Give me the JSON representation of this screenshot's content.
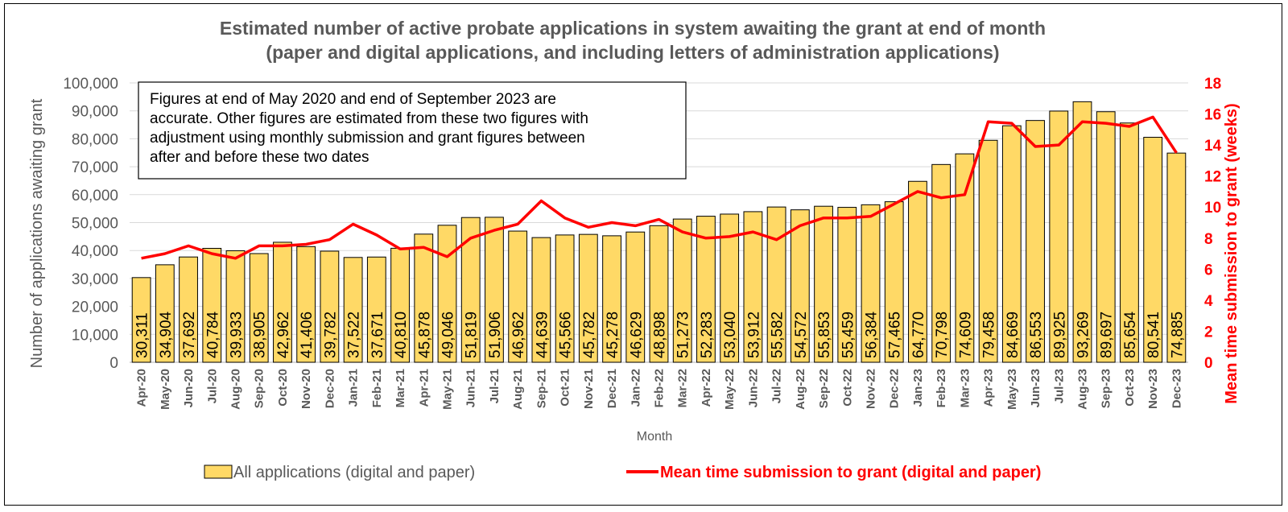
{
  "chart_data": {
    "type": "bar",
    "title": "Estimated number of active probate applications in system awaiting the grant at end of month",
    "subtitle": "(paper and digital applications, and including letters of administration applications)",
    "xlabel": "Month",
    "ylabel": "Number of applications awaiting grant",
    "y2label": "Mean time submission to grant (weeks)",
    "ylim": [
      0,
      100000
    ],
    "y2lim": [
      0,
      18
    ],
    "yticks": [
      "0",
      "10,000",
      "20,000",
      "30,000",
      "40,000",
      "50,000",
      "60,000",
      "70,000",
      "80,000",
      "90,000",
      "100,000"
    ],
    "y2ticks": [
      "0",
      "2",
      "4",
      "6",
      "8",
      "10",
      "12",
      "14",
      "16",
      "18"
    ],
    "grid": true,
    "legend_position": "bottom",
    "categories": [
      "Apr-20",
      "May-20",
      "Jun-20",
      "Jul-20",
      "Aug-20",
      "Sep-20",
      "Oct-20",
      "Nov-20",
      "Dec-20",
      "Jan-21",
      "Feb-21",
      "Mar-21",
      "Apr-21",
      "May-21",
      "Jun-21",
      "Jul-21",
      "Aug-21",
      "Sep-21",
      "Oct-21",
      "Nov-21",
      "Dec-21",
      "Jan-22",
      "Feb-22",
      "Mar-22",
      "Apr-22",
      "May-22",
      "Jun-22",
      "Jul-22",
      "Aug-22",
      "Sep-22",
      "Oct-22",
      "Nov-22",
      "Dec-22",
      "Jan-23",
      "Feb-23",
      "Mar-23",
      "Apr-23",
      "May-23",
      "Jun-23",
      "Jul-23",
      "Aug-23",
      "Sep-23",
      "Oct-23",
      "Nov-23",
      "Dec-23"
    ],
    "series": [
      {
        "name": "All applications (digital and paper)",
        "type": "bar",
        "axis": "left",
        "color": "#ffd966",
        "values": [
          30311,
          34904,
          37692,
          40784,
          39933,
          38905,
          42962,
          41406,
          39782,
          37522,
          37671,
          40810,
          45878,
          49046,
          51819,
          51906,
          46962,
          44639,
          45566,
          45782,
          45278,
          46629,
          48898,
          51273,
          52283,
          53040,
          53912,
          55582,
          54572,
          55853,
          55459,
          56384,
          57465,
          64770,
          70798,
          74609,
          79458,
          84669,
          86553,
          89925,
          93269,
          89697,
          85654,
          80541,
          74885
        ],
        "labels": [
          "30,311",
          "34,904",
          "37,692",
          "40,784",
          "39,933",
          "38,905",
          "42,962",
          "41,406",
          "39,782",
          "37,522",
          "37,671",
          "40,810",
          "45,878",
          "49,046",
          "51,819",
          "51,906",
          "46,962",
          "44,639",
          "45,566",
          "45,782",
          "45,278",
          "46,629",
          "48,898",
          "51,273",
          "52,283",
          "53,040",
          "53,912",
          "55,582",
          "54,572",
          "55,853",
          "55,459",
          "56,384",
          "57,465",
          "64,770",
          "70,798",
          "74,609",
          "79,458",
          "84,669",
          "86,553",
          "89,925",
          "93,269",
          "89,697",
          "85,654",
          "80,541",
          "74,885"
        ]
      },
      {
        "name": "Mean time submission to grant (digital and paper)",
        "type": "line",
        "axis": "right",
        "color": "#ff0000",
        "values": [
          6.7,
          7.0,
          7.5,
          7.0,
          6.7,
          7.5,
          7.5,
          7.6,
          7.9,
          8.9,
          8.2,
          7.3,
          7.4,
          6.8,
          8.0,
          8.5,
          8.9,
          10.4,
          9.3,
          8.7,
          9.0,
          8.8,
          9.2,
          8.4,
          8.0,
          8.1,
          8.4,
          7.9,
          8.8,
          9.3,
          9.3,
          9.4,
          10.2,
          11.0,
          10.6,
          10.8,
          15.5,
          15.4,
          13.9,
          14.0,
          15.5,
          15.4,
          15.2,
          15.8,
          13.5
        ]
      }
    ],
    "annotation": "Figures at end of May 2020 and end of September 2023 are accurate. Other figures are estimated from these two figures with adjustment using monthly submission and grant figures between after and before these two dates",
    "annotation_lines": [
      "Figures at end of May 2020 and end of September 2023 are",
      "accurate. Other figures are estimated from these two figures with",
      "adjustment using monthly submission and grant figures between",
      "after and before these two dates"
    ]
  }
}
